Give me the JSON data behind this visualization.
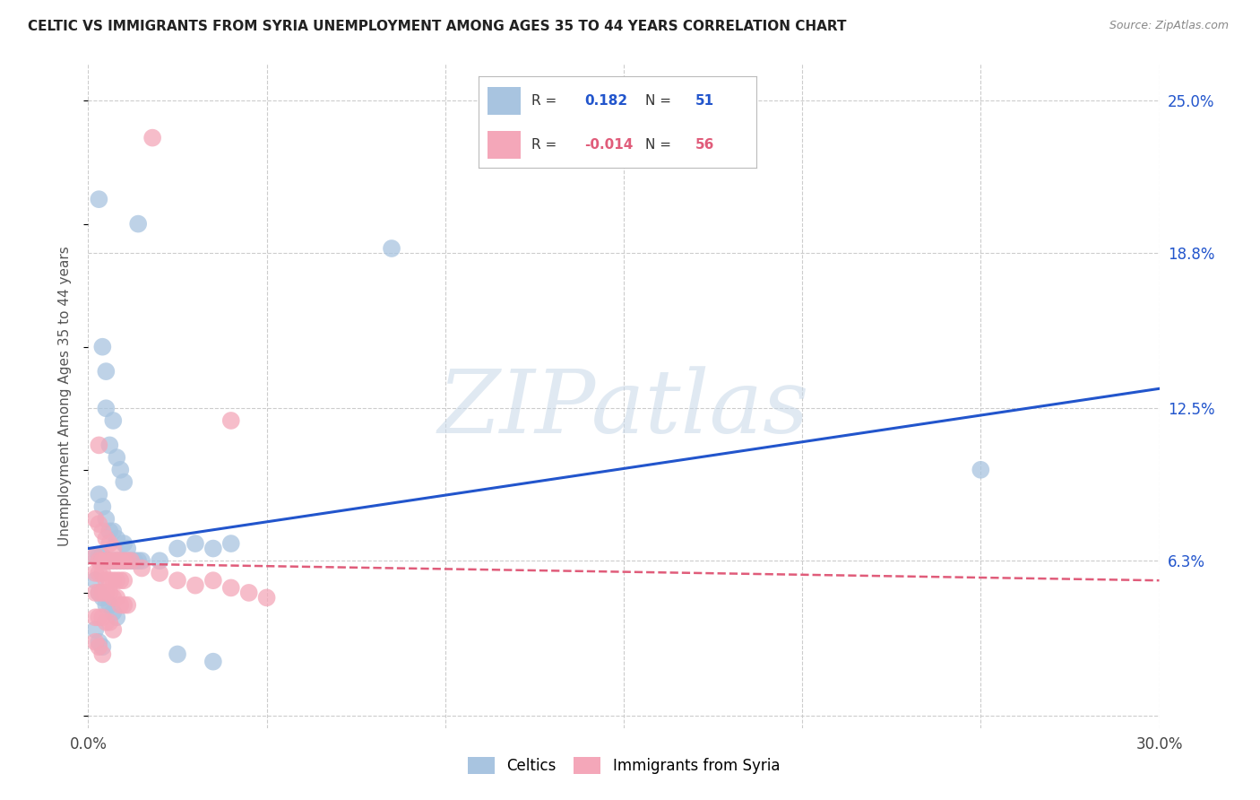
{
  "title": "CELTIC VS IMMIGRANTS FROM SYRIA UNEMPLOYMENT AMONG AGES 35 TO 44 YEARS CORRELATION CHART",
  "source": "Source: ZipAtlas.com",
  "ylabel": "Unemployment Among Ages 35 to 44 years",
  "xlim": [
    0.0,
    0.3
  ],
  "ylim": [
    -0.005,
    0.265
  ],
  "xticks": [
    0.0,
    0.05,
    0.1,
    0.15,
    0.2,
    0.25,
    0.3
  ],
  "xticklabels": [
    "0.0%",
    "",
    "",
    "",
    "",
    "",
    "30.0%"
  ],
  "ytick_positions": [
    0.0,
    0.063,
    0.125,
    0.188,
    0.25
  ],
  "ytick_labels": [
    "",
    "6.3%",
    "12.5%",
    "18.8%",
    "25.0%"
  ],
  "celtics_color": "#a8c4e0",
  "syria_color": "#f4a7b9",
  "celtics_line_color": "#2255cc",
  "syria_line_color": "#e05c7a",
  "celtics_line_x0": 0.0,
  "celtics_line_y0": 0.068,
  "celtics_line_x1": 0.3,
  "celtics_line_y1": 0.133,
  "syria_line_x0": 0.0,
  "syria_line_y0": 0.062,
  "syria_line_x1": 0.3,
  "syria_line_y1": 0.055,
  "watermark_text": "ZIPatlas",
  "background_color": "#ffffff",
  "grid_color": "#cccccc",
  "celtics_R": "0.182",
  "celtics_N": "51",
  "syria_R": "-0.014",
  "syria_N": "56",
  "legend_label_1": "Celtics",
  "legend_label_2": "Immigrants from Syria",
  "celtics_scatter": [
    [
      0.003,
      0.21
    ],
    [
      0.014,
      0.2
    ],
    [
      0.085,
      0.19
    ],
    [
      0.004,
      0.15
    ],
    [
      0.005,
      0.14
    ],
    [
      0.005,
      0.125
    ],
    [
      0.007,
      0.12
    ],
    [
      0.006,
      0.11
    ],
    [
      0.008,
      0.105
    ],
    [
      0.009,
      0.1
    ],
    [
      0.01,
      0.095
    ],
    [
      0.003,
      0.09
    ],
    [
      0.004,
      0.085
    ],
    [
      0.005,
      0.08
    ],
    [
      0.006,
      0.075
    ],
    [
      0.007,
      0.075
    ],
    [
      0.008,
      0.072
    ],
    [
      0.01,
      0.07
    ],
    [
      0.011,
      0.068
    ],
    [
      0.002,
      0.065
    ],
    [
      0.003,
      0.065
    ],
    [
      0.004,
      0.065
    ],
    [
      0.005,
      0.063
    ],
    [
      0.006,
      0.063
    ],
    [
      0.007,
      0.063
    ],
    [
      0.008,
      0.063
    ],
    [
      0.009,
      0.063
    ],
    [
      0.01,
      0.063
    ],
    [
      0.011,
      0.063
    ],
    [
      0.012,
      0.063
    ],
    [
      0.013,
      0.063
    ],
    [
      0.014,
      0.063
    ],
    [
      0.015,
      0.063
    ],
    [
      0.02,
      0.063
    ],
    [
      0.025,
      0.068
    ],
    [
      0.03,
      0.07
    ],
    [
      0.035,
      0.068
    ],
    [
      0.04,
      0.07
    ],
    [
      0.002,
      0.055
    ],
    [
      0.003,
      0.05
    ],
    [
      0.004,
      0.048
    ],
    [
      0.005,
      0.045
    ],
    [
      0.006,
      0.045
    ],
    [
      0.007,
      0.042
    ],
    [
      0.008,
      0.04
    ],
    [
      0.002,
      0.035
    ],
    [
      0.003,
      0.03
    ],
    [
      0.004,
      0.028
    ],
    [
      0.025,
      0.025
    ],
    [
      0.035,
      0.022
    ],
    [
      0.25,
      0.1
    ]
  ],
  "syria_scatter": [
    [
      0.018,
      0.235
    ],
    [
      0.04,
      0.12
    ],
    [
      0.003,
      0.11
    ],
    [
      0.002,
      0.08
    ],
    [
      0.003,
      0.078
    ],
    [
      0.004,
      0.075
    ],
    [
      0.005,
      0.072
    ],
    [
      0.006,
      0.07
    ],
    [
      0.007,
      0.068
    ],
    [
      0.002,
      0.065
    ],
    [
      0.003,
      0.063
    ],
    [
      0.004,
      0.063
    ],
    [
      0.005,
      0.063
    ],
    [
      0.006,
      0.063
    ],
    [
      0.007,
      0.063
    ],
    [
      0.008,
      0.063
    ],
    [
      0.009,
      0.063
    ],
    [
      0.01,
      0.063
    ],
    [
      0.011,
      0.063
    ],
    [
      0.012,
      0.063
    ],
    [
      0.002,
      0.058
    ],
    [
      0.003,
      0.058
    ],
    [
      0.004,
      0.058
    ],
    [
      0.005,
      0.055
    ],
    [
      0.006,
      0.055
    ],
    [
      0.007,
      0.055
    ],
    [
      0.008,
      0.055
    ],
    [
      0.009,
      0.055
    ],
    [
      0.01,
      0.055
    ],
    [
      0.002,
      0.05
    ],
    [
      0.003,
      0.05
    ],
    [
      0.004,
      0.05
    ],
    [
      0.005,
      0.05
    ],
    [
      0.006,
      0.05
    ],
    [
      0.007,
      0.048
    ],
    [
      0.008,
      0.048
    ],
    [
      0.009,
      0.045
    ],
    [
      0.01,
      0.045
    ],
    [
      0.011,
      0.045
    ],
    [
      0.002,
      0.04
    ],
    [
      0.003,
      0.04
    ],
    [
      0.004,
      0.04
    ],
    [
      0.005,
      0.038
    ],
    [
      0.006,
      0.038
    ],
    [
      0.007,
      0.035
    ],
    [
      0.015,
      0.06
    ],
    [
      0.02,
      0.058
    ],
    [
      0.025,
      0.055
    ],
    [
      0.03,
      0.053
    ],
    [
      0.035,
      0.055
    ],
    [
      0.04,
      0.052
    ],
    [
      0.045,
      0.05
    ],
    [
      0.05,
      0.048
    ],
    [
      0.002,
      0.03
    ],
    [
      0.003,
      0.028
    ],
    [
      0.004,
      0.025
    ]
  ]
}
